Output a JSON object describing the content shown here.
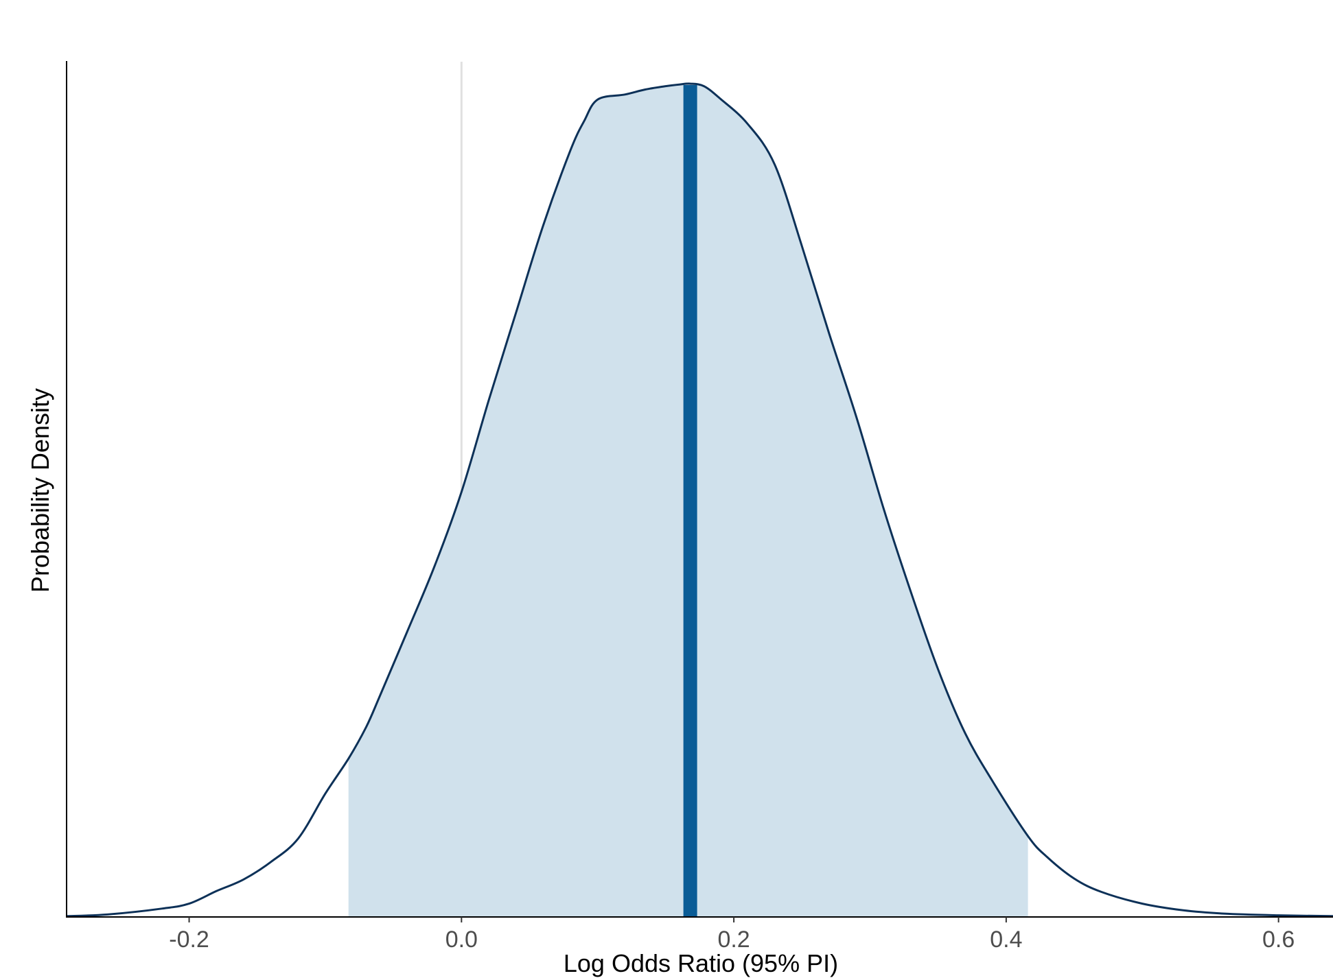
{
  "chart_data": {
    "type": "area",
    "title": "",
    "xlabel": "Log Odds Ratio (95% PI)",
    "ylabel": "Probability Density",
    "xlim": [
      -0.29,
      0.64
    ],
    "ylim": [
      0,
      1.0
    ],
    "x_ticks": [
      -0.2,
      0.0,
      0.2,
      0.4,
      0.6
    ],
    "x_tick_labels": [
      "-0.2",
      "0.0",
      "0.2",
      "0.4",
      "0.6"
    ],
    "y_ticks_shown": false,
    "grid": false,
    "reference_line_x": 0.0,
    "point_estimate": 0.168,
    "interval": [
      -0.083,
      0.416
    ],
    "colors": {
      "density_line": "#0d3158",
      "interval_fill": "#d0e1ec",
      "estimate_line": "#0a5c96",
      "reference_line": "#e0e0e0",
      "axis": "#000000"
    },
    "density": {
      "x": [
        -0.29,
        -0.26,
        -0.22,
        -0.2,
        -0.18,
        -0.16,
        -0.14,
        -0.12,
        -0.1,
        -0.083,
        -0.07,
        -0.06,
        -0.04,
        -0.02,
        0.0,
        0.02,
        0.04,
        0.06,
        0.08,
        0.09,
        0.1,
        0.12,
        0.135,
        0.15,
        0.16,
        0.168,
        0.178,
        0.19,
        0.21,
        0.23,
        0.25,
        0.27,
        0.29,
        0.31,
        0.33,
        0.35,
        0.37,
        0.39,
        0.416,
        0.43,
        0.45,
        0.47,
        0.5,
        0.53,
        0.56,
        0.6,
        0.64
      ],
      "y": [
        0.001,
        0.003,
        0.01,
        0.016,
        0.031,
        0.045,
        0.066,
        0.094,
        0.148,
        0.19,
        0.228,
        0.265,
        0.342,
        0.42,
        0.51,
        0.62,
        0.725,
        0.83,
        0.92,
        0.955,
        0.981,
        0.987,
        0.993,
        0.997,
        0.999,
        1.0,
        0.997,
        0.982,
        0.952,
        0.903,
        0.805,
        0.7,
        0.6,
        0.49,
        0.39,
        0.297,
        0.22,
        0.163,
        0.097,
        0.072,
        0.046,
        0.03,
        0.016,
        0.008,
        0.004,
        0.002,
        0.001
      ]
    }
  }
}
